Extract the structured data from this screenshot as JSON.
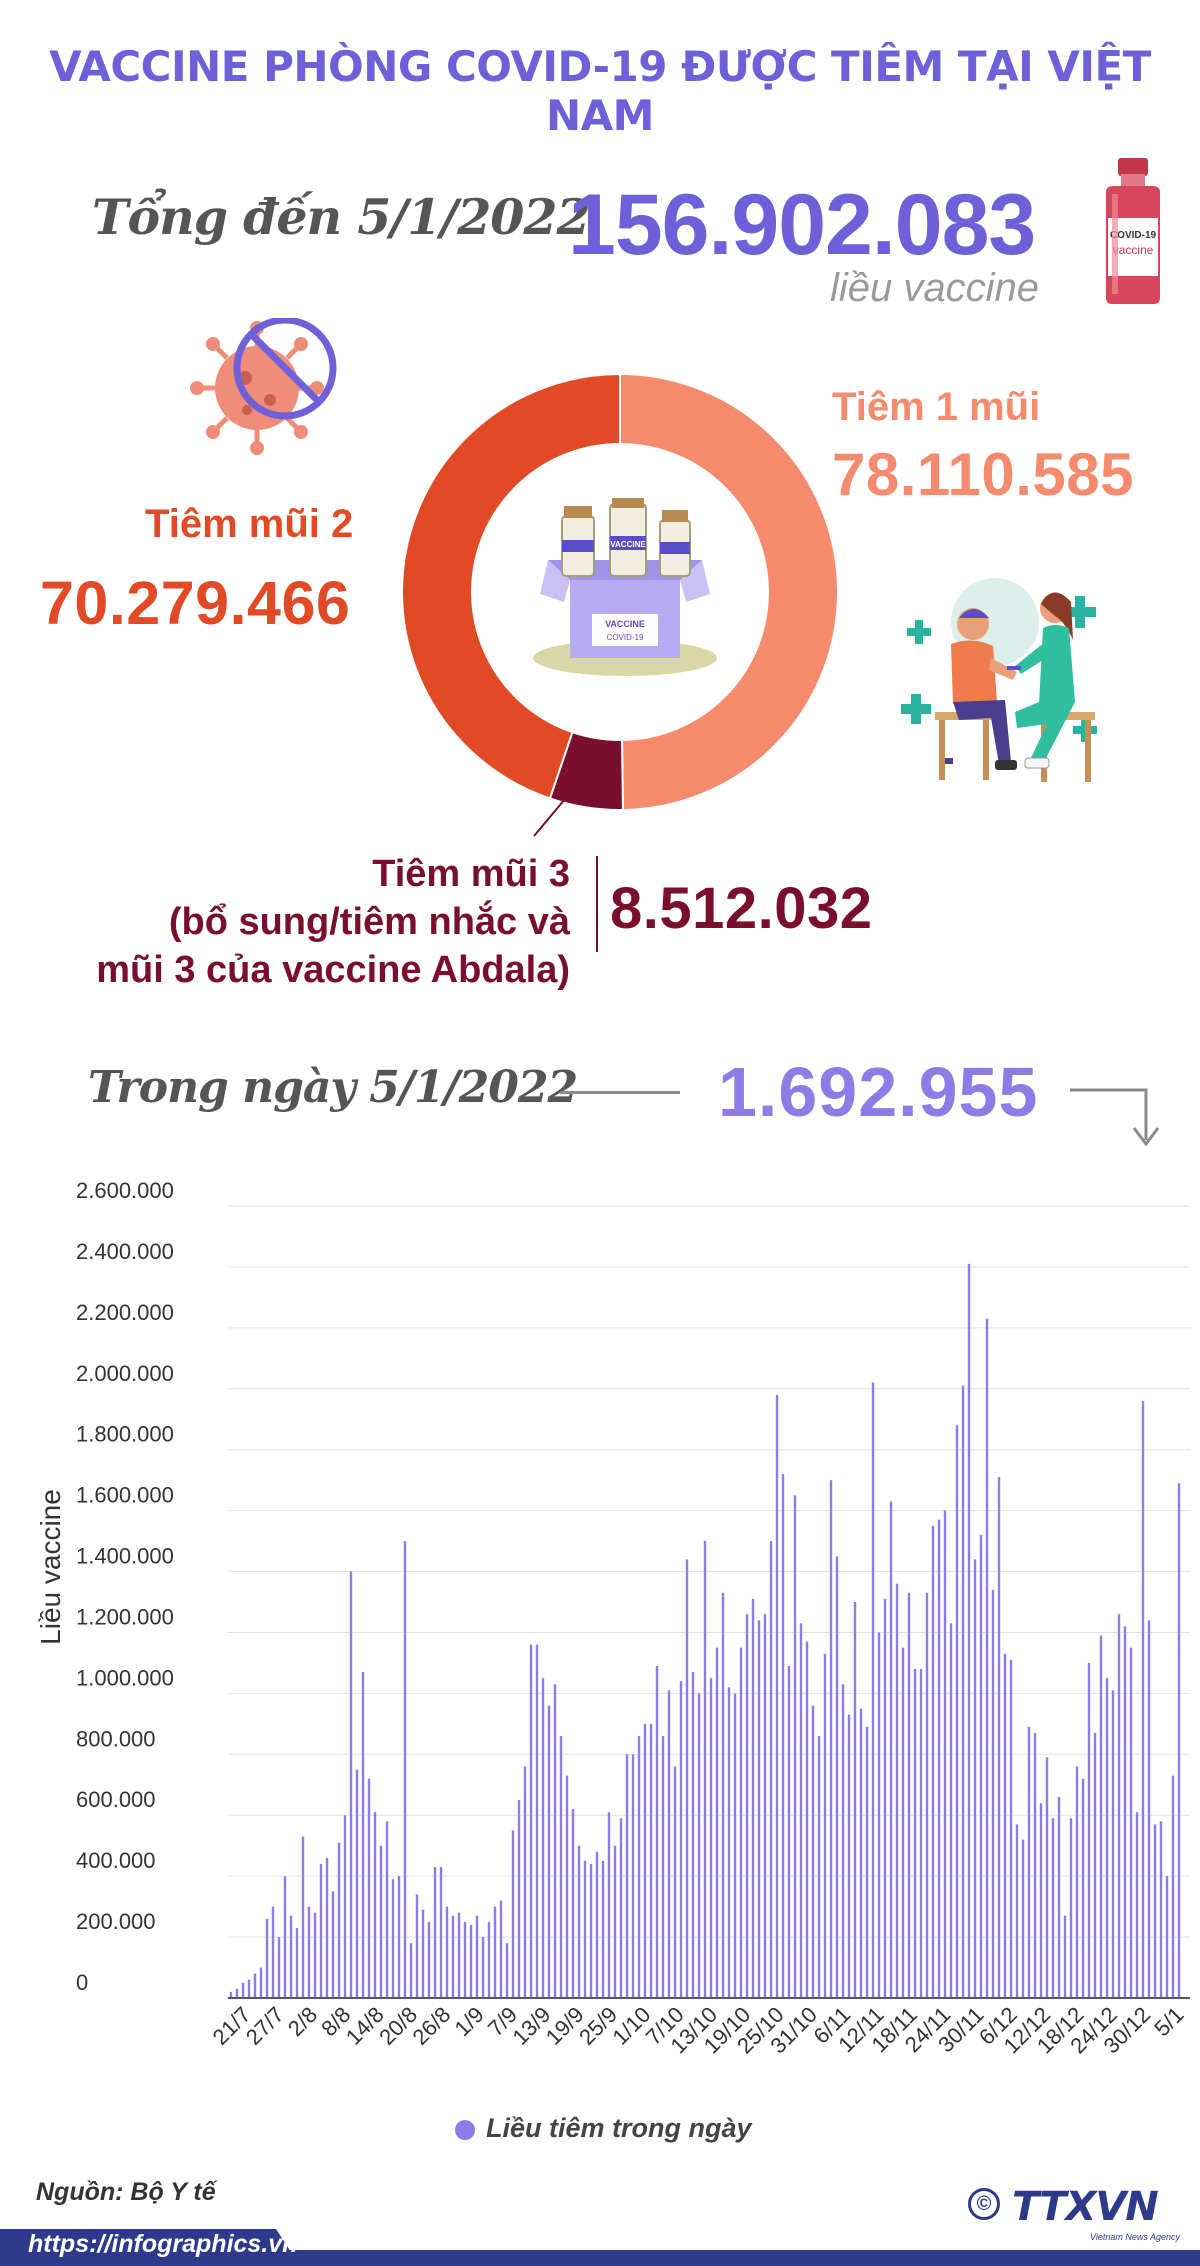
{
  "header": {
    "title": "VACCINE PHÒNG COVID-19 ĐƯỢC TIÊM TẠI VIỆT NAM",
    "total_label": "Tổng đến 5/1/2022",
    "total_value": "156.902.083",
    "total_unit": "liều vaccine"
  },
  "doses": {
    "dose1_label": "Tiêm 1 mũi",
    "dose1_value": "78.110.585",
    "dose2_label": "Tiêm mũi 2",
    "dose2_value": "70.279.466",
    "dose3_line1": "Tiêm mũi 3",
    "dose3_line2": "(bổ sung/tiêm nhắc và",
    "dose3_line3": "mũi 3 của vaccine Abdala)",
    "dose3_value": "8.512.032"
  },
  "illustrations": {
    "vial_label_1": "COVID-19",
    "vial_label_2": "vaccine",
    "box_label_1": "VACCINE",
    "box_label_2": "COVID-19",
    "bottle_label": "VACCINE"
  },
  "colors": {
    "accent": "#6f5fd9",
    "dose1": "#f58a6c",
    "dose2": "#e24a26",
    "dose3": "#7a0e2e",
    "bar": "#8c7ce6"
  },
  "daily": {
    "label": "Trong ngày 5/1/2022",
    "value": "1.692.955"
  },
  "chart_data": [
    {
      "type": "pie",
      "style": "donut",
      "categories": [
        "Tiêm 1 mũi",
        "Tiêm mũi 2",
        "Tiêm mũi 3"
      ],
      "values": [
        78110585,
        70279466,
        8512032
      ]
    },
    {
      "type": "bar",
      "ylabel": "Liều vaccine",
      "ylim": [
        0,
        2600000
      ],
      "yticks": [
        0,
        200000,
        400000,
        600000,
        800000,
        1000000,
        1200000,
        1400000,
        1600000,
        1800000,
        2000000,
        2200000,
        2400000,
        2600000
      ],
      "ytick_labels": [
        "0",
        "200.000",
        "400.000",
        "600.000",
        "800.000",
        "1.000.000",
        "1.200.000",
        "1.400.000",
        "1.600.000",
        "1.800.000",
        "2.000.000",
        "2.200.000",
        "2.400.000",
        "2.600.000"
      ],
      "xtick_labels": [
        "21/7",
        "27/7",
        "2/8",
        "8/8",
        "14/8",
        "20/8",
        "26/8",
        "1/9",
        "7/9",
        "13/9",
        "19/9",
        "25/9",
        "1/10",
        "7/10",
        "13/10",
        "19/10",
        "25/10",
        "31/10",
        "6/11",
        "12/11",
        "18/11",
        "24/11",
        "30/11",
        "6/12",
        "12/12",
        "18/12",
        "24/12",
        "30/12",
        "5/1"
      ],
      "x_start": "21/7/2021",
      "x_end": "5/1/2022",
      "grid": true,
      "legend": "bottom",
      "series": [
        {
          "name": "Liều tiêm trong ngày",
          "values": [
            20000,
            30000,
            50000,
            60000,
            80000,
            100000,
            260000,
            300000,
            200000,
            400000,
            270000,
            230000,
            530000,
            300000,
            280000,
            440000,
            460000,
            350000,
            510000,
            600000,
            1400000,
            750000,
            1070000,
            720000,
            610000,
            500000,
            580000,
            390000,
            400000,
            1500000,
            180000,
            340000,
            290000,
            250000,
            430000,
            430000,
            300000,
            270000,
            280000,
            250000,
            240000,
            270000,
            200000,
            250000,
            300000,
            320000,
            180000,
            550000,
            650000,
            760000,
            1160000,
            1160000,
            1050000,
            960000,
            1030000,
            860000,
            730000,
            620000,
            500000,
            450000,
            440000,
            480000,
            450000,
            610000,
            500000,
            590000,
            800000,
            800000,
            860000,
            900000,
            900000,
            1090000,
            860000,
            1010000,
            760000,
            1040000,
            1440000,
            1070000,
            1000000,
            1500000,
            1050000,
            1150000,
            1330000,
            1020000,
            1000000,
            1150000,
            1260000,
            1310000,
            1240000,
            1260000,
            1500000,
            1980000,
            1720000,
            1090000,
            1650000,
            1230000,
            1170000,
            960000,
            860000,
            1130000,
            1700000,
            1450000,
            1030000,
            930000,
            1300000,
            950000,
            890000,
            2020000,
            1200000,
            1310000,
            1630000,
            1360000,
            1150000,
            1330000,
            1080000,
            1080000,
            1330000,
            1550000,
            1570000,
            1600000,
            1230000,
            1880000,
            2010000,
            2410000,
            1440000,
            1520000,
            2230000,
            1340000,
            1710000,
            1130000,
            1110000,
            570000,
            520000,
            890000,
            870000,
            640000,
            790000,
            590000,
            660000,
            270000,
            590000,
            760000,
            720000,
            1100000,
            870000,
            1190000,
            1050000,
            1010000,
            1260000,
            1220000,
            1150000,
            610000,
            1960000,
            1240000,
            570000,
            580000,
            400000,
            730000,
            1690000
          ]
        }
      ]
    }
  ],
  "footer": {
    "source": "Nguồn: Bộ Y tế",
    "url": "https://infographics.vn",
    "logo": "TTXVN",
    "logo_sub": "Vietnam News Agency",
    "copyright": "©"
  }
}
